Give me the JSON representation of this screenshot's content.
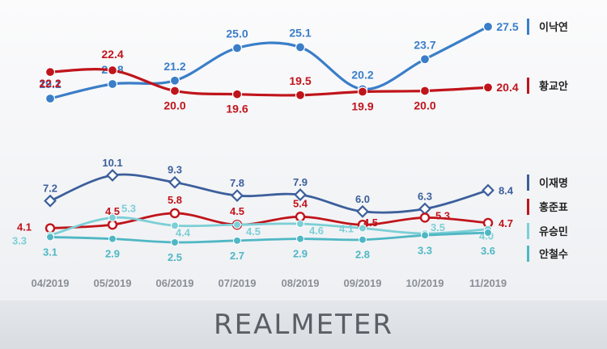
{
  "chart_data": [
    {
      "type": "line",
      "categories": [
        "04/2019",
        "05/2019",
        "06/2019",
        "07/2019",
        "08/2019",
        "09/2019",
        "10/2019",
        "11/2019"
      ],
      "title": "",
      "xlabel": "",
      "ylabel": "",
      "series": [
        {
          "name": "이낙연",
          "color": "#3a7ec8",
          "values": [
            19.1,
            20.8,
            21.2,
            25.0,
            25.1,
            20.2,
            23.7,
            27.5
          ]
        },
        {
          "name": "황교안",
          "color": "#c0141b",
          "values": [
            22.2,
            22.4,
            20.0,
            19.6,
            19.5,
            19.9,
            20.0,
            20.4
          ]
        }
      ]
    },
    {
      "type": "line",
      "categories": [
        "04/2019",
        "05/2019",
        "06/2019",
        "07/2019",
        "08/2019",
        "09/2019",
        "10/2019",
        "11/2019"
      ],
      "title": "",
      "xlabel": "",
      "ylabel": "",
      "series": [
        {
          "name": "이재명",
          "color": "#3c5f9b",
          "values": [
            7.2,
            10.1,
            9.3,
            7.8,
            7.9,
            6.0,
            6.3,
            8.4
          ]
        },
        {
          "name": "홍준표",
          "color": "#c0141b",
          "values": [
            4.1,
            4.5,
            5.8,
            4.5,
            5.4,
            4.5,
            5.3,
            4.7
          ]
        },
        {
          "name": "유승민",
          "color": "#7ccfd6",
          "values": [
            3.3,
            5.3,
            4.4,
            4.5,
            4.6,
            4.1,
            3.5,
            4.0
          ]
        },
        {
          "name": "안철수",
          "color": "#4fb7c4",
          "values": [
            3.1,
            2.9,
            2.5,
            2.7,
            2.9,
            2.8,
            3.3,
            3.6
          ]
        }
      ]
    }
  ],
  "footer": {
    "brand": "REALMETER"
  }
}
